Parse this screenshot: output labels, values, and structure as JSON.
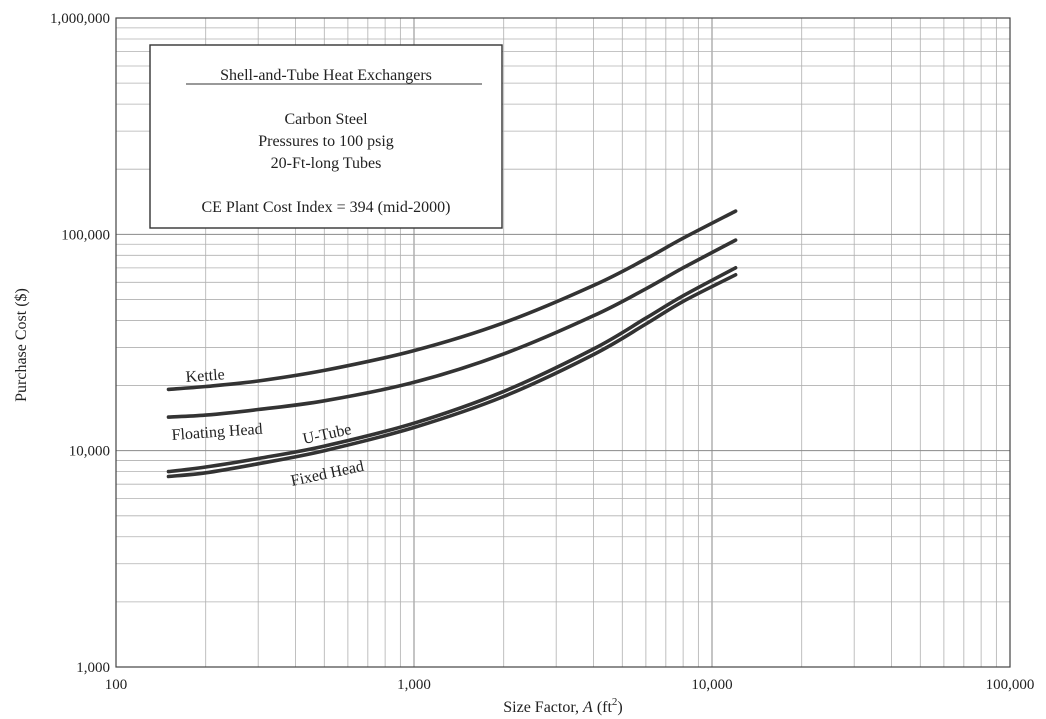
{
  "chart_data": {
    "type": "line",
    "xlabel": "Size Factor, A (ft²)",
    "xlabel_parts": {
      "text": "Size Factor, ",
      "var": "A",
      "unit": " (ft",
      "sup": "2",
      "close": ")"
    },
    "ylabel": "Purchase Cost ($)",
    "x_scale": "log",
    "y_scale": "log",
    "xlim": [
      100,
      100000
    ],
    "ylim": [
      1000,
      1000000
    ],
    "x_ticks": [
      100,
      1000,
      10000,
      100000
    ],
    "x_tick_labels": [
      "100",
      "1,000",
      "10,000",
      "100,000"
    ],
    "y_ticks": [
      1000,
      10000,
      100000,
      1000000
    ],
    "y_tick_labels": [
      "1,000",
      "10,000",
      "100,000",
      "1,000,000"
    ],
    "grid": true,
    "legend": "none",
    "annotation_box": {
      "title": "Shell-and-Tube Heat Exchangers",
      "lines": [
        "Carbon Steel",
        "Pressures to 100 psig",
        "20-Ft-long Tubes"
      ],
      "index_line": "CE Plant Cost Index = 394 (mid-2000)"
    },
    "series": [
      {
        "name": "Kettle",
        "x": [
          150,
          200,
          300,
          500,
          1000,
          2000,
          4000,
          6000,
          8000,
          12000
        ],
        "y": [
          19200,
          19800,
          21000,
          23500,
          29000,
          39000,
          58000,
          77000,
          96000,
          128000
        ]
      },
      {
        "name": "Floating Head",
        "x": [
          150,
          200,
          300,
          500,
          1000,
          2000,
          4000,
          6000,
          8000,
          12000
        ],
        "y": [
          14300,
          14600,
          15500,
          17000,
          20700,
          28000,
          42000,
          56000,
          70000,
          94000
        ]
      },
      {
        "name": "U-Tube",
        "x": [
          150,
          200,
          300,
          500,
          1000,
          2000,
          4000,
          6000,
          8000,
          12000
        ],
        "y": [
          8000,
          8400,
          9200,
          10500,
          13400,
          18800,
          29500,
          41000,
          52000,
          70000
        ]
      },
      {
        "name": "Fixed Head",
        "x": [
          150,
          200,
          300,
          500,
          1000,
          2000,
          4000,
          6000,
          8000,
          12000
        ],
        "y": [
          7600,
          7900,
          8700,
          10000,
          12800,
          17800,
          27800,
          38500,
          49000,
          65000
        ]
      }
    ]
  }
}
